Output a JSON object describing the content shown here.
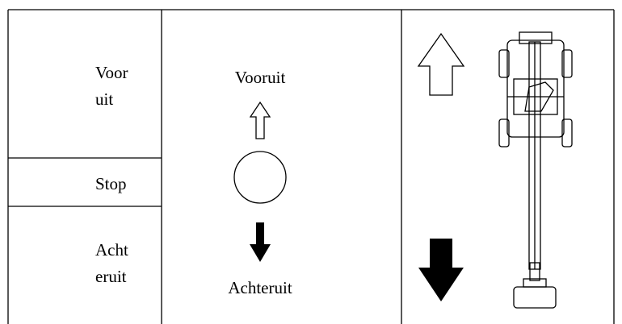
{
  "table": {
    "column1": [
      {
        "lines": [
          "Voor",
          "uit"
        ]
      },
      {
        "lines": [
          "Stop"
        ]
      },
      {
        "lines": [
          "Acht",
          "eruit"
        ]
      }
    ],
    "column2": {
      "forward_label": "Vooruit",
      "backward_label": "Achteruit"
    }
  }
}
